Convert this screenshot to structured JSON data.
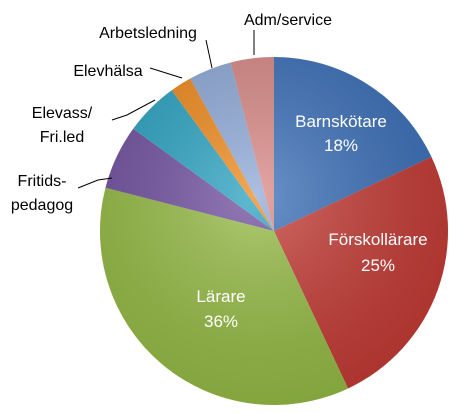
{
  "chart_data": {
    "type": "pie",
    "title": "",
    "categories": [
      "Barnskötare",
      "Förskollärare",
      "Lärare",
      "Fritids-pedagog",
      "Elevass/Fri.led",
      "Elevhälsa",
      "Arbetsledning",
      "Adm/service"
    ],
    "values": [
      18,
      25,
      36,
      6,
      5,
      2,
      4,
      4
    ],
    "value_labels": [
      "18%",
      "25%",
      "36%",
      "",
      "",
      "",
      "",
      ""
    ],
    "colors": [
      "#3a6fb8",
      "#c43a34",
      "#95bb44",
      "#7150a0",
      "#2ba3c2",
      "#f08a1c",
      "#8faad8",
      "#d98986"
    ],
    "legend": "none",
    "start_angle_deg": 0,
    "direction": "clockwise"
  },
  "labels": {
    "barnskotare": "Barnskötare",
    "barnskotare_pct": "18%",
    "forskollarare": "Förskollärare",
    "forskollarare_pct": "25%",
    "larare": "Lärare",
    "larare_pct": "36%",
    "fritids_line1": "Fritids-",
    "fritids_line2": "pedagog",
    "elevass_line1": "Elevass/",
    "elevass_line2": "Fri.led",
    "elevhalsa": "Elevhälsa",
    "arbetsledning": "Arbetsledning",
    "adm": "Adm/service"
  }
}
